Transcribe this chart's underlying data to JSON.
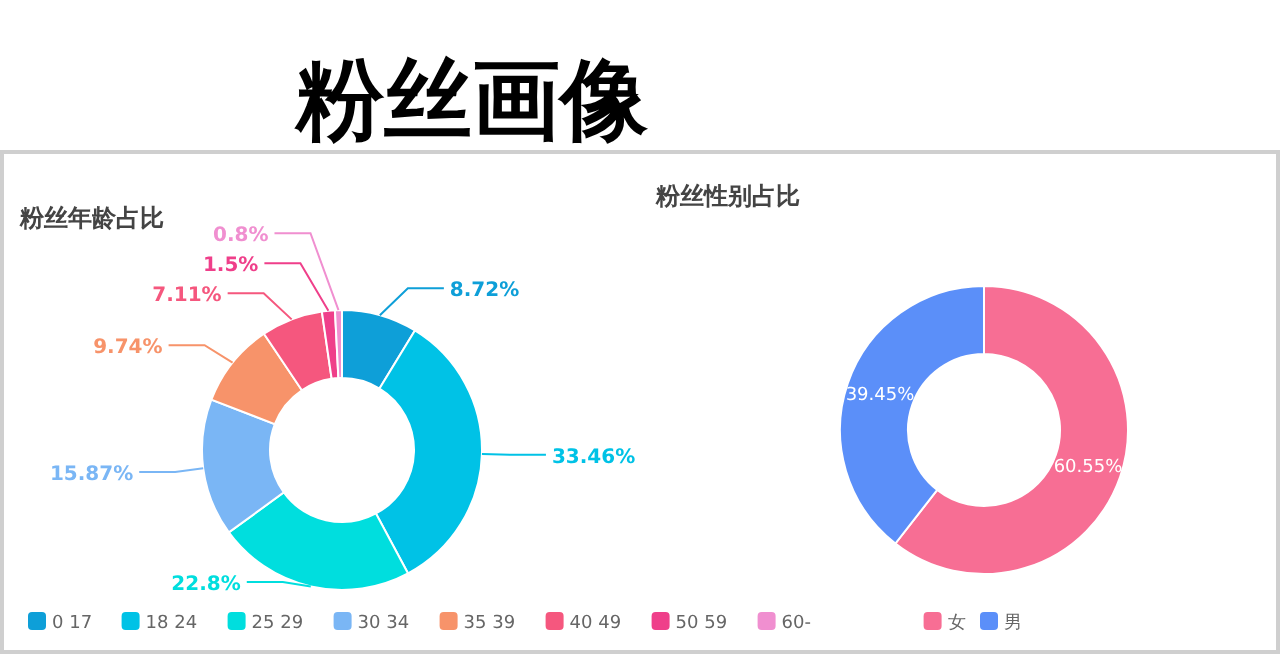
{
  "chart_data": [
    {
      "type": "other",
      "title": "粉丝画像"
    },
    {
      "type": "donut",
      "title": "粉丝年龄占比",
      "categories": [
        "0 17",
        "18 24",
        "25 29",
        "30 34",
        "35 39",
        "40 49",
        "50 59",
        "60-"
      ],
      "values": [
        8.72,
        33.46,
        22.8,
        15.87,
        9.74,
        7.11,
        1.5,
        0.8
      ],
      "colors": [
        "#0e9fd8",
        "#00c2e6",
        "#00dede",
        "#7ab6f5",
        "#f7936a",
        "#f5577e",
        "#ef3f8a",
        "#f08fd0"
      ],
      "value_labels": [
        "8.72%",
        "33.46%",
        "22.8%",
        "15.87%",
        "9.74%",
        "7.11%",
        "1.5%",
        "0.8%"
      ],
      "legend": "bottom"
    },
    {
      "type": "donut",
      "title": "粉丝性别占比",
      "categories": [
        "女",
        "男"
      ],
      "values": [
        60.55,
        39.45
      ],
      "colors": [
        "#f76e94",
        "#5b8ff9"
      ],
      "value_labels": [
        "60.55%",
        "39.45%"
      ],
      "legend": "bottom"
    }
  ]
}
